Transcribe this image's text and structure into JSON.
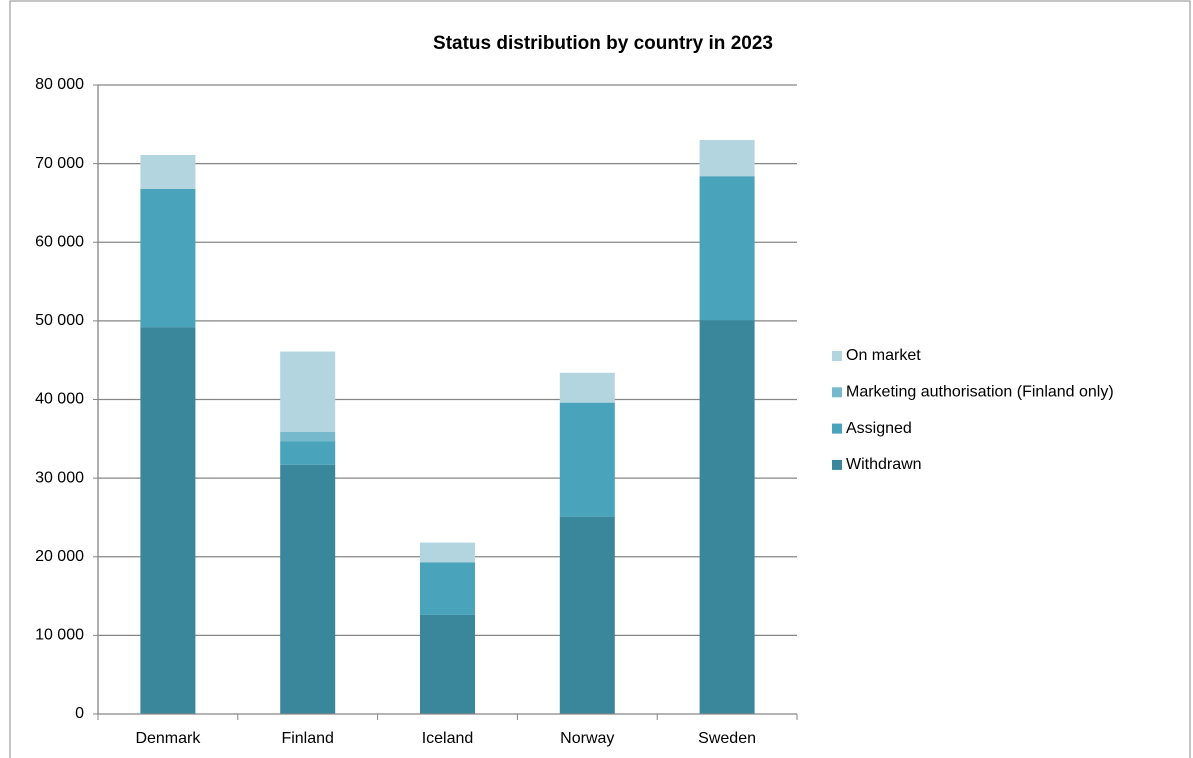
{
  "chart_data": {
    "type": "stacked_bar",
    "title": "Status distribution by country in 2023",
    "categories": [
      "Denmark",
      "Finland",
      "Iceland",
      "Norway",
      "Sweden"
    ],
    "series": [
      {
        "name": "Withdrawn",
        "color": "#3a879b",
        "values": [
          49200,
          31700,
          12600,
          25100,
          50100
        ]
      },
      {
        "name": "Assigned",
        "color": "#48a3bb",
        "values": [
          17600,
          3000,
          6700,
          14500,
          18300
        ]
      },
      {
        "name": "Marketing authorisation (Finland only)",
        "color": "#76b8cc",
        "values": [
          0,
          1200,
          0,
          0,
          0
        ]
      },
      {
        "name": "On market",
        "color": "#b3d5e0",
        "values": [
          4300,
          10200,
          2500,
          3800,
          4600
        ]
      }
    ],
    "ylim": [
      0,
      80000
    ],
    "yticks": [
      0,
      {
        "value": 10000,
        "label": "10 000"
      },
      {
        "value": 20000,
        "label": "20 000"
      },
      {
        "value": 30000,
        "label": "30 000"
      },
      {
        "value": 40000,
        "label": "40 000"
      },
      {
        "value": 50000,
        "label": "50 000"
      },
      {
        "value": 60000,
        "label": "60 000"
      },
      {
        "value": 70000,
        "label": "70 000"
      },
      {
        "value": 80000,
        "label": "80 000"
      }
    ],
    "grid": true,
    "legend": "right"
  }
}
